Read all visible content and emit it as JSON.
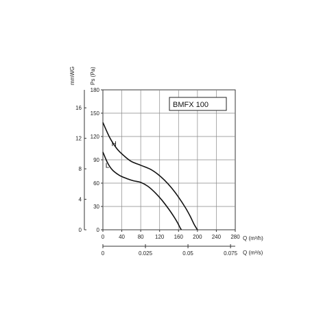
{
  "chart_data": {
    "type": "line",
    "title": "BMFX 100",
    "ylabel": "Ps (Pa)",
    "ylabel_secondary": "mmWG",
    "xlabel": "Q (m³/h)",
    "xlabel_secondary": "Q (m³/s)",
    "xlim": [
      0,
      280
    ],
    "ylim": [
      0,
      180
    ],
    "x_ticks": [
      0,
      40,
      80,
      120,
      160,
      200,
      240,
      280
    ],
    "y_ticks": [
      0,
      30,
      60,
      90,
      120,
      150,
      180
    ],
    "y2_ticks": [
      "0",
      "4",
      "8",
      "12",
      "16"
    ],
    "y2_tick_values": [
      0,
      4,
      8,
      12,
      16
    ],
    "y2_per_y": 0.102,
    "x2_ticks": [
      "0",
      "0.025",
      "0.05",
      "0.075"
    ],
    "x2_tick_values": [
      0,
      0.025,
      0.05,
      0.075
    ],
    "x2_per_x": 0.0002778,
    "grid": true,
    "series": [
      {
        "name": "H",
        "x": [
          0,
          15,
          30,
          45,
          60,
          80,
          100,
          115,
          130,
          145,
          160,
          175,
          185,
          193,
          200
        ],
        "y": [
          138,
          118,
          104,
          95,
          88,
          83,
          78,
          72,
          64,
          54,
          42,
          28,
          17,
          7,
          0
        ]
      },
      {
        "name": "L",
        "x": [
          0,
          10,
          20,
          35,
          50,
          65,
          80,
          95,
          110,
          125,
          140,
          150,
          158,
          163,
          166
        ],
        "y": [
          100,
          86,
          77,
          70,
          66,
          63,
          61,
          56,
          48,
          38,
          26,
          17,
          9,
          3,
          0
        ]
      }
    ]
  }
}
